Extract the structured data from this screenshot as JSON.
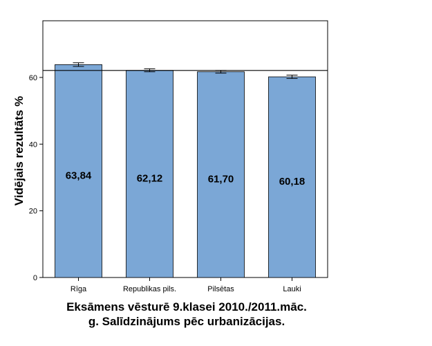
{
  "chart_data": {
    "type": "bar",
    "title_lines": [
      "Eksāmens vēsturē 9.klasei 2010./2011.māc.",
      "g. Salīdzinājums pēc urbanizācijas."
    ],
    "xlabel": "",
    "ylabel": "Vidējais rezultāts %",
    "categories": [
      "Rīga",
      "Republikas pils.",
      "Pilsētas",
      "Lauki"
    ],
    "values": [
      63.84,
      62.12,
      61.7,
      60.18
    ],
    "value_labels": [
      "63,84",
      "62,12",
      "61,70",
      "60,18"
    ],
    "error_bars": [
      [
        63.3,
        64.4
      ],
      [
        61.7,
        62.6
      ],
      [
        61.3,
        62.1
      ],
      [
        59.7,
        60.7
      ]
    ],
    "reference_line": 62.1,
    "ylim": [
      0,
      77
    ],
    "yticks": [
      0,
      20,
      40,
      60
    ],
    "grid": false,
    "bar_color": "#7ba7d6"
  }
}
